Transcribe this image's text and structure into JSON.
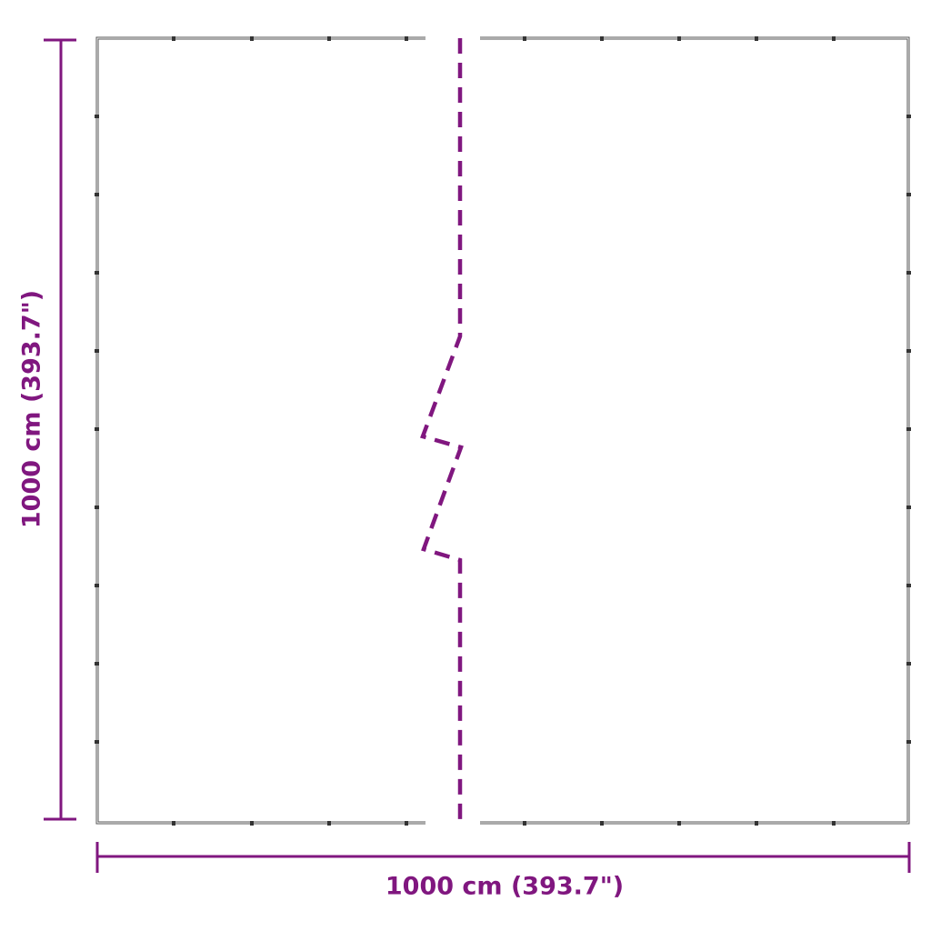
{
  "dimensions": {
    "width_label": "1000 cm (393.7\")",
    "height_label": "1000 cm (393.7\")"
  },
  "colors": {
    "accent": "#80177f",
    "frame": "#444444"
  }
}
